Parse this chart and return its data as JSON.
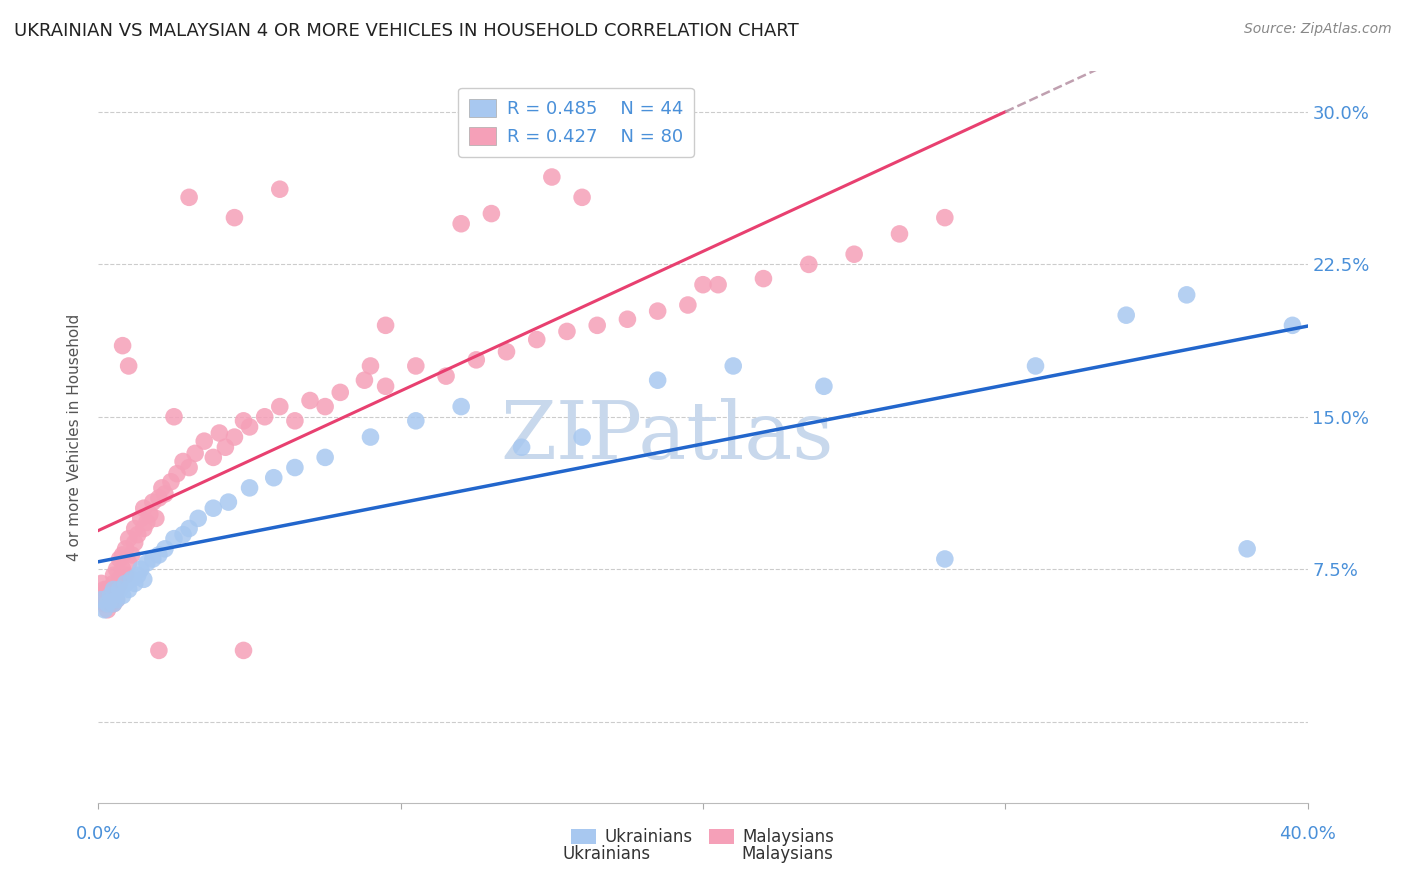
{
  "title": "UKRAINIAN VS MALAYSIAN 4 OR MORE VEHICLES IN HOUSEHOLD CORRELATION CHART",
  "source": "Source: ZipAtlas.com",
  "ylabel": "4 or more Vehicles in Household",
  "xlim": [
    0.0,
    0.4
  ],
  "ylim": [
    -0.04,
    0.32
  ],
  "ytick_vals": [
    0.0,
    0.075,
    0.15,
    0.225,
    0.3
  ],
  "ytick_labels": [
    "",
    "7.5%",
    "15.0%",
    "22.5%",
    "30.0%"
  ],
  "xtick_vals": [
    0.0,
    0.1,
    0.2,
    0.3,
    0.4
  ],
  "xtick_labels": [
    "0.0%",
    "",
    "",
    "",
    "40.0%"
  ],
  "ukrainians": {
    "label": "Ukrainians",
    "R": 0.485,
    "N": 44,
    "color": "#A8C8F0",
    "line_color": "#2266CC",
    "x": [
      0.001,
      0.002,
      0.003,
      0.004,
      0.005,
      0.005,
      0.006,
      0.007,
      0.008,
      0.009,
      0.01,
      0.011,
      0.012,
      0.013,
      0.014,
      0.015,
      0.016,
      0.018,
      0.02,
      0.022,
      0.025,
      0.028,
      0.03,
      0.033,
      0.038,
      0.043,
      0.05,
      0.058,
      0.065,
      0.075,
      0.09,
      0.105,
      0.12,
      0.14,
      0.16,
      0.185,
      0.21,
      0.24,
      0.28,
      0.31,
      0.34,
      0.36,
      0.38,
      0.395
    ],
    "y": [
      0.06,
      0.055,
      0.058,
      0.062,
      0.065,
      0.058,
      0.06,
      0.065,
      0.062,
      0.068,
      0.065,
      0.07,
      0.068,
      0.072,
      0.075,
      0.07,
      0.078,
      0.08,
      0.082,
      0.085,
      0.09,
      0.092,
      0.095,
      0.1,
      0.105,
      0.108,
      0.115,
      0.12,
      0.125,
      0.13,
      0.14,
      0.148,
      0.155,
      0.135,
      0.14,
      0.168,
      0.175,
      0.165,
      0.08,
      0.175,
      0.2,
      0.21,
      0.085,
      0.195
    ]
  },
  "malaysians": {
    "label": "Malaysians",
    "R": 0.427,
    "N": 80,
    "color": "#F5A0B8",
    "line_color": "#E84070",
    "line_solid_end": 0.3,
    "x": [
      0.001,
      0.001,
      0.002,
      0.002,
      0.003,
      0.003,
      0.004,
      0.004,
      0.005,
      0.005,
      0.005,
      0.006,
      0.006,
      0.006,
      0.007,
      0.007,
      0.007,
      0.008,
      0.008,
      0.009,
      0.009,
      0.01,
      0.01,
      0.011,
      0.012,
      0.012,
      0.013,
      0.014,
      0.015,
      0.015,
      0.016,
      0.017,
      0.018,
      0.019,
      0.02,
      0.021,
      0.022,
      0.024,
      0.026,
      0.028,
      0.03,
      0.032,
      0.035,
      0.038,
      0.04,
      0.042,
      0.045,
      0.048,
      0.05,
      0.055,
      0.06,
      0.065,
      0.07,
      0.075,
      0.08,
      0.088,
      0.095,
      0.105,
      0.115,
      0.125,
      0.135,
      0.145,
      0.155,
      0.165,
      0.175,
      0.185,
      0.195,
      0.205,
      0.22,
      0.235,
      0.25,
      0.265,
      0.28,
      0.03,
      0.12,
      0.2,
      0.045,
      0.06,
      0.15,
      0.095
    ],
    "y": [
      0.068,
      0.06,
      0.065,
      0.058,
      0.065,
      0.055,
      0.058,
      0.062,
      0.068,
      0.058,
      0.072,
      0.065,
      0.075,
      0.06,
      0.07,
      0.08,
      0.068,
      0.075,
      0.082,
      0.072,
      0.085,
      0.078,
      0.09,
      0.082,
      0.088,
      0.095,
      0.092,
      0.1,
      0.095,
      0.105,
      0.098,
      0.102,
      0.108,
      0.1,
      0.11,
      0.115,
      0.112,
      0.118,
      0.122,
      0.128,
      0.125,
      0.132,
      0.138,
      0.13,
      0.142,
      0.135,
      0.14,
      0.148,
      0.145,
      0.15,
      0.155,
      0.148,
      0.158,
      0.155,
      0.162,
      0.168,
      0.165,
      0.175,
      0.17,
      0.178,
      0.182,
      0.188,
      0.192,
      0.195,
      0.198,
      0.202,
      0.205,
      0.215,
      0.218,
      0.225,
      0.23,
      0.24,
      0.248,
      0.258,
      0.245,
      0.215,
      0.248,
      0.262,
      0.268,
      0.195
    ],
    "outliers_x": [
      0.09,
      0.13,
      0.16,
      0.048,
      0.02,
      0.025,
      0.01,
      0.008
    ],
    "outliers_y": [
      0.175,
      0.25,
      0.258,
      0.035,
      0.035,
      0.15,
      0.175,
      0.185
    ]
  },
  "bg_color": "#FFFFFF",
  "title_color": "#222222",
  "title_fontsize": 13,
  "tick_color": "#4A90D9",
  "watermark": "ZIPatlas",
  "watermark_color": "#C8D8EC",
  "grid_color": "#CCCCCC",
  "grid_style": "--",
  "dashed_line_color": "#C0A0B0"
}
